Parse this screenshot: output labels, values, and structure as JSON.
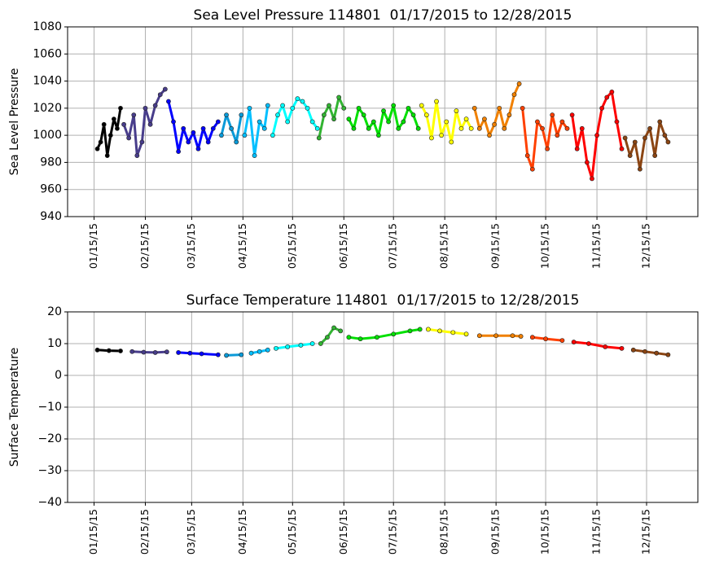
{
  "chart_data": [
    {
      "type": "scatter",
      "title": "Sea Level Pressure 114801  01/17/2015 to 12/28/2015",
      "y_label": "Sea Level Pressure",
      "xlim": [
        "2014-12-30",
        "2016-01-15"
      ],
      "ylim": [
        940,
        1080
      ],
      "yticks": [
        940,
        960,
        980,
        1000,
        1020,
        1040,
        1060,
        1080
      ],
      "xticks": [
        {
          "value": "2015-01-15",
          "label": "01/15/15"
        },
        {
          "value": "2015-02-15",
          "label": "02/15/15"
        },
        {
          "value": "2015-03-15",
          "label": "03/15/15"
        },
        {
          "value": "2015-04-15",
          "label": "04/15/15"
        },
        {
          "value": "2015-05-15",
          "label": "05/15/15"
        },
        {
          "value": "2015-06-15",
          "label": "06/15/15"
        },
        {
          "value": "2015-07-15",
          "label": "07/15/15"
        },
        {
          "value": "2015-08-15",
          "label": "08/15/15"
        },
        {
          "value": "2015-09-15",
          "label": "09/15/15"
        },
        {
          "value": "2015-10-15",
          "label": "10/15/15"
        },
        {
          "value": "2015-11-15",
          "label": "11/15/15"
        },
        {
          "value": "2015-12-15",
          "label": "12/15/15"
        }
      ],
      "grid": true,
      "series": [
        {
          "color": "#000000",
          "x": [
            "2015-01-17",
            "2015-01-19",
            "2015-01-21",
            "2015-01-23",
            "2015-01-25",
            "2015-01-27",
            "2015-01-29",
            "2015-01-31"
          ],
          "values": [
            990,
            995,
            1008,
            985,
            1000,
            1012,
            1005,
            1020
          ]
        },
        {
          "color": "#483d8b",
          "x": [
            "2015-02-02",
            "2015-02-05",
            "2015-02-08",
            "2015-02-10",
            "2015-02-13",
            "2015-02-15",
            "2015-02-18",
            "2015-02-21",
            "2015-02-24",
            "2015-02-27"
          ],
          "values": [
            1008,
            998,
            1015,
            985,
            995,
            1020,
            1008,
            1022,
            1030,
            1034
          ]
        },
        {
          "color": "#0000ff",
          "x": [
            "2015-03-01",
            "2015-03-04",
            "2015-03-07",
            "2015-03-10",
            "2015-03-13",
            "2015-03-16",
            "2015-03-19",
            "2015-03-22",
            "2015-03-25",
            "2015-03-28",
            "2015-03-31"
          ],
          "values": [
            1025,
            1010,
            988,
            1005,
            995,
            1002,
            990,
            1005,
            995,
            1005,
            1010
          ]
        },
        {
          "color": "#0a9ad8",
          "x": [
            "2015-04-02",
            "2015-04-05",
            "2015-04-08",
            "2015-04-11",
            "2015-04-14"
          ],
          "values": [
            1000,
            1015,
            1005,
            995,
            1015
          ]
        },
        {
          "color": "#00bfff",
          "x": [
            "2015-04-16",
            "2015-04-19",
            "2015-04-22",
            "2015-04-25",
            "2015-04-28",
            "2015-04-30"
          ],
          "values": [
            1000,
            1020,
            985,
            1010,
            1005,
            1022
          ]
        },
        {
          "color": "#00ffff",
          "x": [
            "2015-05-03",
            "2015-05-06",
            "2015-05-09",
            "2015-05-12",
            "2015-05-15",
            "2015-05-18",
            "2015-05-21",
            "2015-05-24",
            "2015-05-27",
            "2015-05-30"
          ],
          "values": [
            1000,
            1015,
            1022,
            1010,
            1020,
            1027,
            1025,
            1020,
            1010,
            1005
          ]
        },
        {
          "color": "#32b432",
          "x": [
            "2015-05-31",
            "2015-06-03",
            "2015-06-06",
            "2015-06-09",
            "2015-06-12",
            "2015-06-15"
          ],
          "values": [
            998,
            1015,
            1022,
            1012,
            1028,
            1020
          ]
        },
        {
          "color": "#00e000",
          "x": [
            "2015-06-18",
            "2015-06-21",
            "2015-06-24",
            "2015-06-27",
            "2015-06-30",
            "2015-07-03",
            "2015-07-06",
            "2015-07-09",
            "2015-07-12",
            "2015-07-15",
            "2015-07-18",
            "2015-07-21",
            "2015-07-24",
            "2015-07-27",
            "2015-07-30"
          ],
          "values": [
            1012,
            1005,
            1020,
            1015,
            1005,
            1010,
            1000,
            1018,
            1010,
            1022,
            1005,
            1010,
            1020,
            1015,
            1005
          ]
        },
        {
          "color": "#ffff00",
          "x": [
            "2015-08-01",
            "2015-08-04",
            "2015-08-07",
            "2015-08-10",
            "2015-08-13",
            "2015-08-16",
            "2015-08-19",
            "2015-08-22",
            "2015-08-25",
            "2015-08-28",
            "2015-08-31"
          ],
          "values": [
            1022,
            1015,
            998,
            1025,
            1000,
            1010,
            995,
            1018,
            1005,
            1012,
            1005
          ]
        },
        {
          "color": "#f08000",
          "x": [
            "2015-09-02",
            "2015-09-05",
            "2015-09-08",
            "2015-09-11",
            "2015-09-14",
            "2015-09-17",
            "2015-09-20",
            "2015-09-23",
            "2015-09-26",
            "2015-09-29"
          ],
          "values": [
            1020,
            1005,
            1012,
            1000,
            1008,
            1020,
            1005,
            1015,
            1030,
            1038
          ]
        },
        {
          "color": "#ff4000",
          "x": [
            "2015-10-01",
            "2015-10-04",
            "2015-10-07",
            "2015-10-10",
            "2015-10-13",
            "2015-10-16",
            "2015-10-19",
            "2015-10-22",
            "2015-10-25",
            "2015-10-28"
          ],
          "values": [
            1020,
            985,
            975,
            1010,
            1005,
            990,
            1015,
            1000,
            1010,
            1005
          ]
        },
        {
          "color": "#ff0000",
          "x": [
            "2015-10-31",
            "2015-11-03",
            "2015-11-06",
            "2015-11-09",
            "2015-11-12",
            "2015-11-15",
            "2015-11-18",
            "2015-11-21",
            "2015-11-24",
            "2015-11-27",
            "2015-11-30"
          ],
          "values": [
            1015,
            990,
            1005,
            980,
            968,
            1000,
            1020,
            1028,
            1032,
            1010,
            990
          ]
        },
        {
          "color": "#8b4513",
          "x": [
            "2015-12-02",
            "2015-12-05",
            "2015-12-08",
            "2015-12-11",
            "2015-12-14",
            "2015-12-17",
            "2015-12-20",
            "2015-12-23",
            "2015-12-26",
            "2015-12-28"
          ],
          "values": [
            998,
            985,
            995,
            975,
            998,
            1005,
            985,
            1010,
            1000,
            995
          ]
        }
      ]
    },
    {
      "type": "scatter",
      "title": "Surface Temperature 114801  01/17/2015 to 12/28/2015",
      "y_label": "Surface Temperature",
      "xlim": [
        "2014-12-30",
        "2016-01-15"
      ],
      "ylim": [
        -40,
        20
      ],
      "yticks": [
        {
          "value": -40,
          "label": "−40"
        },
        {
          "value": -30,
          "label": "−30"
        },
        {
          "value": -20,
          "label": "−20"
        },
        {
          "value": -10,
          "label": "−10"
        },
        0,
        10,
        20
      ],
      "xticks": [
        {
          "value": "2015-01-15",
          "label": "01/15/15"
        },
        {
          "value": "2015-02-15",
          "label": "02/15/15"
        },
        {
          "value": "2015-03-15",
          "label": "03/15/15"
        },
        {
          "value": "2015-04-15",
          "label": "04/15/15"
        },
        {
          "value": "2015-05-15",
          "label": "05/15/15"
        },
        {
          "value": "2015-06-15",
          "label": "06/15/15"
        },
        {
          "value": "2015-07-15",
          "label": "07/15/15"
        },
        {
          "value": "2015-08-15",
          "label": "08/15/15"
        },
        {
          "value": "2015-09-15",
          "label": "09/15/15"
        },
        {
          "value": "2015-10-15",
          "label": "10/15/15"
        },
        {
          "value": "2015-11-15",
          "label": "11/15/15"
        },
        {
          "value": "2015-12-15",
          "label": "12/15/15"
        }
      ],
      "grid": true,
      "series": [
        {
          "color": "#000000",
          "x": [
            "2015-01-17",
            "2015-01-24",
            "2015-01-31"
          ],
          "values": [
            8,
            7.8,
            7.7
          ]
        },
        {
          "color": "#483d8b",
          "x": [
            "2015-02-07",
            "2015-02-14",
            "2015-02-21",
            "2015-02-28"
          ],
          "values": [
            7.5,
            7.3,
            7.2,
            7.4
          ]
        },
        {
          "color": "#0000ff",
          "x": [
            "2015-03-07",
            "2015-03-14",
            "2015-03-21",
            "2015-03-31"
          ],
          "values": [
            7.2,
            7.0,
            6.8,
            6.5
          ]
        },
        {
          "color": "#0a9ad8",
          "x": [
            "2015-04-05",
            "2015-04-14"
          ],
          "values": [
            6.3,
            6.5
          ]
        },
        {
          "color": "#00bfff",
          "x": [
            "2015-04-20",
            "2015-04-25",
            "2015-04-30"
          ],
          "values": [
            7,
            7.5,
            8
          ]
        },
        {
          "color": "#00ffff",
          "x": [
            "2015-05-05",
            "2015-05-12",
            "2015-05-20",
            "2015-05-27"
          ],
          "values": [
            8.5,
            9,
            9.5,
            10
          ]
        },
        {
          "color": "#32b432",
          "x": [
            "2015-06-01",
            "2015-06-05",
            "2015-06-09",
            "2015-06-13"
          ],
          "values": [
            10,
            12,
            15,
            14
          ]
        },
        {
          "color": "#00e000",
          "x": [
            "2015-06-18",
            "2015-06-25",
            "2015-07-05",
            "2015-07-15",
            "2015-07-25",
            "2015-07-31"
          ],
          "values": [
            12,
            11.5,
            12,
            13,
            14,
            14.5
          ]
        },
        {
          "color": "#ffff00",
          "x": [
            "2015-08-05",
            "2015-08-12",
            "2015-08-20",
            "2015-08-28"
          ],
          "values": [
            14.5,
            14,
            13.5,
            13
          ]
        },
        {
          "color": "#f08000",
          "x": [
            "2015-09-05",
            "2015-09-15",
            "2015-09-25",
            "2015-09-30"
          ],
          "values": [
            12.5,
            12.5,
            12.5,
            12.3
          ]
        },
        {
          "color": "#ff4000",
          "x": [
            "2015-10-07",
            "2015-10-15",
            "2015-10-25"
          ],
          "values": [
            12,
            11.5,
            11
          ]
        },
        {
          "color": "#ff0000",
          "x": [
            "2015-11-01",
            "2015-11-10",
            "2015-11-20",
            "2015-11-30"
          ],
          "values": [
            10.5,
            10,
            9,
            8.5
          ]
        },
        {
          "color": "#8b4513",
          "x": [
            "2015-12-07",
            "2015-12-14",
            "2015-12-21",
            "2015-12-28"
          ],
          "values": [
            8,
            7.5,
            7,
            6.5
          ]
        }
      ]
    }
  ]
}
